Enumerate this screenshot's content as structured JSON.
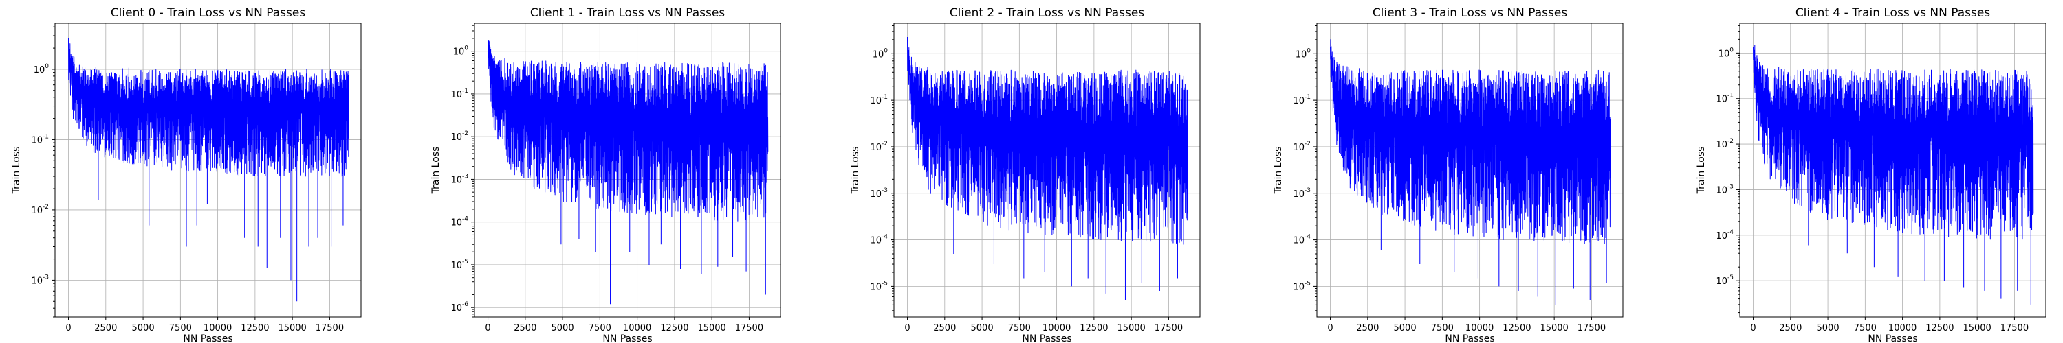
{
  "chart_data": [
    {
      "type": "line",
      "title": "Client 0 - Train Loss vs NN Passes",
      "xlabel": "NN Passes",
      "ylabel": "Train Loss",
      "xlim": [
        -900,
        19600
      ],
      "ylim": [
        0.0003,
        4.5
      ],
      "yscale": "log",
      "grid": true,
      "xticks": [
        0,
        2500,
        5000,
        7500,
        10000,
        12500,
        15000,
        17500
      ],
      "yticks": [
        -3,
        -2,
        -1,
        0
      ],
      "series": [
        {
          "color": "#0000ff",
          "x": [
            0,
            150,
            300,
            600,
            1000,
            1500,
            2000,
            3000,
            4000,
            5000,
            6000,
            7000,
            8000,
            9000,
            10000,
            11000,
            12000,
            13000,
            14000,
            15000,
            16000,
            17000,
            18000,
            18750
          ],
          "upper": [
            2.8,
            2.2,
            1.6,
            1.3,
            1.2,
            1.1,
            1.1,
            1.05,
            1.05,
            1.0,
            1.0,
            1.0,
            1.0,
            1.0,
            1.0,
            1.0,
            1.0,
            1.0,
            1.0,
            1.0,
            1.0,
            1.0,
            1.0,
            0.95
          ],
          "lower": [
            0.7,
            0.35,
            0.2,
            0.12,
            0.09,
            0.07,
            0.06,
            0.05,
            0.045,
            0.04,
            0.04,
            0.035,
            0.035,
            0.035,
            0.035,
            0.03,
            0.03,
            0.03,
            0.03,
            0.03,
            0.03,
            0.03,
            0.03,
            0.03
          ],
          "spikes": [
            [
              2000,
              0.014
            ],
            [
              5400,
              0.006
            ],
            [
              7900,
              0.003
            ],
            [
              8600,
              0.006
            ],
            [
              9300,
              0.012
            ],
            [
              11800,
              0.004
            ],
            [
              12700,
              0.003
            ],
            [
              13300,
              0.0015
            ],
            [
              14200,
              0.004
            ],
            [
              14900,
              0.001
            ],
            [
              15300,
              0.0005
            ],
            [
              16100,
              0.003
            ],
            [
              16700,
              0.004
            ],
            [
              17600,
              0.003
            ],
            [
              18400,
              0.006
            ]
          ]
        }
      ]
    },
    {
      "type": "line",
      "title": "Client 1 - Train Loss vs NN Passes",
      "xlabel": "NN Passes",
      "ylabel": "Train Loss",
      "xlim": [
        -900,
        19600
      ],
      "ylim": [
        6e-07,
        4.5
      ],
      "yscale": "log",
      "grid": true,
      "xticks": [
        0,
        2500,
        5000,
        7500,
        10000,
        12500,
        15000,
        17500
      ],
      "yticks": [
        -6,
        -5,
        -4,
        -3,
        -2,
        -1,
        0
      ],
      "series": [
        {
          "color": "#0000ff",
          "x": [
            0,
            150,
            300,
            600,
            1000,
            1500,
            2000,
            3000,
            4000,
            5000,
            6000,
            7000,
            8000,
            9000,
            10000,
            11000,
            12000,
            13000,
            14000,
            15000,
            16000,
            17000,
            18000,
            18750
          ],
          "upper": [
            2.2,
            1.5,
            1.0,
            0.8,
            0.7,
            0.65,
            0.6,
            0.6,
            0.6,
            0.55,
            0.55,
            0.55,
            0.55,
            0.55,
            0.55,
            0.55,
            0.55,
            0.55,
            0.55,
            0.55,
            0.55,
            0.55,
            0.55,
            0.5
          ],
          "lower": [
            0.5,
            0.08,
            0.02,
            0.006,
            0.003,
            0.0015,
            0.001,
            0.0006,
            0.0004,
            0.0003,
            0.00025,
            0.0002,
            0.00018,
            0.00016,
            0.00015,
            0.00014,
            0.00013,
            0.00012,
            0.00012,
            0.00011,
            0.00011,
            0.0001,
            0.0001,
            0.0001
          ],
          "spikes": [
            [
              4900,
              3e-05
            ],
            [
              6100,
              4e-05
            ],
            [
              7200,
              2e-05
            ],
            [
              8200,
              1.2e-06
            ],
            [
              9500,
              2e-05
            ],
            [
              10800,
              1e-05
            ],
            [
              11600,
              3e-05
            ],
            [
              12900,
              8e-06
            ],
            [
              14300,
              6e-06
            ],
            [
              15400,
              9e-06
            ],
            [
              16400,
              1.5e-05
            ],
            [
              17300,
              7e-06
            ],
            [
              18600,
              2e-06
            ]
          ]
        }
      ]
    },
    {
      "type": "line",
      "title": "Client 2 - Train Loss vs NN Passes",
      "xlabel": "NN Passes",
      "ylabel": "Train Loss",
      "xlim": [
        -900,
        19600
      ],
      "ylim": [
        2.2e-06,
        4.5
      ],
      "yscale": "log",
      "grid": true,
      "xticks": [
        0,
        2500,
        5000,
        7500,
        10000,
        12500,
        15000,
        17500
      ],
      "yticks": [
        -5,
        -4,
        -3,
        -2,
        -1,
        0
      ],
      "series": [
        {
          "color": "#0000ff",
          "x": [
            0,
            150,
            300,
            600,
            1000,
            1500,
            2000,
            3000,
            4000,
            5000,
            6000,
            7000,
            8000,
            9000,
            10000,
            11000,
            12000,
            13000,
            14000,
            15000,
            16000,
            17000,
            18000,
            18750
          ],
          "upper": [
            2.5,
            1.2,
            0.8,
            0.6,
            0.55,
            0.5,
            0.5,
            0.45,
            0.45,
            0.45,
            0.45,
            0.45,
            0.45,
            0.45,
            0.45,
            0.45,
            0.45,
            0.45,
            0.45,
            0.45,
            0.45,
            0.45,
            0.45,
            0.4
          ],
          "lower": [
            0.4,
            0.06,
            0.015,
            0.005,
            0.002,
            0.001,
            0.0007,
            0.0004,
            0.0003,
            0.0002,
            0.00018,
            0.00015,
            0.00013,
            0.00012,
            0.00011,
            0.0001,
            0.0001,
            9e-05,
            9e-05,
            8e-05,
            8e-05,
            8e-05,
            8e-05,
            8e-05
          ],
          "spikes": [
            [
              3100,
              5e-05
            ],
            [
              5800,
              3e-05
            ],
            [
              7800,
              1.5e-05
            ],
            [
              9200,
              2e-05
            ],
            [
              11000,
              1e-05
            ],
            [
              12100,
              1.5e-05
            ],
            [
              13300,
              7e-06
            ],
            [
              14600,
              5e-06
            ],
            [
              15700,
              1.2e-05
            ],
            [
              16900,
              8e-06
            ],
            [
              18100,
              1.5e-05
            ]
          ]
        }
      ]
    },
    {
      "type": "line",
      "title": "Client 3 - Train Loss vs NN Passes",
      "xlabel": "NN Passes",
      "ylabel": "Train Loss",
      "xlim": [
        -900,
        19600
      ],
      "ylim": [
        2.2e-06,
        4.5
      ],
      "yscale": "log",
      "grid": true,
      "xticks": [
        0,
        2500,
        5000,
        7500,
        10000,
        12500,
        15000,
        17500
      ],
      "yticks": [
        -5,
        -4,
        -3,
        -2,
        -1,
        0
      ],
      "series": [
        {
          "color": "#0000ff",
          "x": [
            0,
            150,
            300,
            600,
            1000,
            1500,
            2000,
            3000,
            4000,
            5000,
            6000,
            7000,
            8000,
            9000,
            10000,
            11000,
            12000,
            13000,
            14000,
            15000,
            16000,
            17000,
            18000,
            18750
          ],
          "upper": [
            2.5,
            1.2,
            0.8,
            0.6,
            0.55,
            0.5,
            0.5,
            0.45,
            0.45,
            0.45,
            0.45,
            0.45,
            0.45,
            0.45,
            0.45,
            0.45,
            0.45,
            0.45,
            0.45,
            0.45,
            0.45,
            0.45,
            0.45,
            0.4
          ],
          "lower": [
            0.4,
            0.06,
            0.015,
            0.005,
            0.002,
            0.001,
            0.0007,
            0.0004,
            0.0003,
            0.0002,
            0.00018,
            0.00015,
            0.00013,
            0.00012,
            0.00011,
            0.0001,
            0.0001,
            9e-05,
            9e-05,
            8e-05,
            8e-05,
            8e-05,
            8e-05,
            8e-05
          ],
          "spikes": [
            [
              3400,
              6e-05
            ],
            [
              6000,
              3e-05
            ],
            [
              8300,
              2e-05
            ],
            [
              9900,
              1.5e-05
            ],
            [
              11300,
              1e-05
            ],
            [
              12600,
              8e-06
            ],
            [
              13900,
              6e-06
            ],
            [
              15100,
              4e-06
            ],
            [
              16300,
              9e-06
            ],
            [
              17400,
              5e-06
            ],
            [
              18500,
              1.2e-05
            ]
          ]
        }
      ]
    },
    {
      "type": "line",
      "title": "Client 4 - Train Loss vs NN Passes",
      "xlabel": "NN Passes",
      "ylabel": "Train Loss",
      "xlim": [
        -900,
        19600
      ],
      "ylim": [
        1.6e-06,
        4.5
      ],
      "yscale": "log",
      "grid": true,
      "xticks": [
        0,
        2500,
        5000,
        7500,
        10000,
        12500,
        15000,
        17500
      ],
      "yticks": [
        -5,
        -4,
        -3,
        -2,
        -1,
        0
      ],
      "series": [
        {
          "color": "#0000ff",
          "x": [
            0,
            150,
            300,
            600,
            1000,
            1500,
            2000,
            3000,
            4000,
            5000,
            6000,
            7000,
            8000,
            9000,
            10000,
            11000,
            12000,
            13000,
            14000,
            15000,
            16000,
            17000,
            18000,
            18750
          ],
          "upper": [
            2.5,
            1.2,
            0.8,
            0.6,
            0.55,
            0.5,
            0.5,
            0.45,
            0.45,
            0.45,
            0.45,
            0.45,
            0.45,
            0.45,
            0.45,
            0.45,
            0.45,
            0.45,
            0.45,
            0.45,
            0.45,
            0.45,
            0.45,
            0.4
          ],
          "lower": [
            0.4,
            0.06,
            0.015,
            0.005,
            0.002,
            0.001,
            0.0007,
            0.0004,
            0.0003,
            0.0002,
            0.00018,
            0.00015,
            0.00013,
            0.00012,
            0.00011,
            0.0001,
            0.0001,
            9e-05,
            9e-05,
            8e-05,
            8e-05,
            8e-05,
            8e-05,
            8e-05
          ],
          "spikes": [
            [
              3700,
              6e-05
            ],
            [
              6300,
              4e-05
            ],
            [
              8100,
              2e-05
            ],
            [
              9700,
              1.2e-05
            ],
            [
              11500,
              1e-05
            ],
            [
              12800,
              1e-05
            ],
            [
              14100,
              7e-06
            ],
            [
              15500,
              6e-06
            ],
            [
              16600,
              4e-06
            ],
            [
              17700,
              6e-06
            ],
            [
              18600,
              3e-06
            ]
          ]
        }
      ]
    }
  ]
}
